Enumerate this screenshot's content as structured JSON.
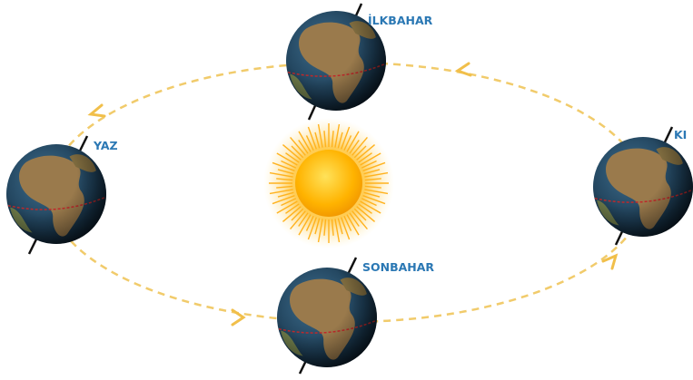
{
  "labels": {
    "spring": "İLKBAHAR",
    "summer": "YAZ",
    "winter": "KI",
    "autumn": "SONBAHAR"
  }
}
